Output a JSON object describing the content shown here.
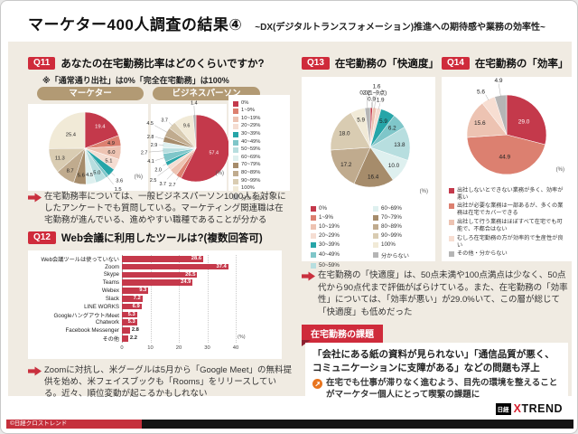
{
  "header": {
    "title": "マーケター400人調査の結果④",
    "subtitle": "~DX(デジタルトランスフォメーション)推進への期待感や業務の効率性~"
  },
  "q11": {
    "badge": "Q11",
    "question": "あなたの在宅勤務比率はどのくらいですか?",
    "note": "※「通常通り出社」は0%「完全在宅勤務」は100%",
    "comment": "在宅勤務率については、一般ビジネスパーソン1000人を対象にしたアンケートでも質問している。マーケティング関連職は在宅勤務が進んでいる、進めやすい職種であることが分かる"
  },
  "q12": {
    "badge": "Q12",
    "question": "Web会議に利用したツールは?(複数回答可)",
    "comment": "Zoomに対抗し、米グーグルは5月から「Google Meet」の無料提供を始め、米フェイスブックも「Rooms」をリリースしている。近々、順位変動が起こるかもしれない"
  },
  "q13": {
    "badge": "Q13",
    "title": "在宅勤務の「快適度」"
  },
  "q14": {
    "badge": "Q14",
    "title": "在宅勤務の「効率」"
  },
  "analysis": {
    "comment": "在宅勤務の「快適度」は、50点未満や100点満点は少なく、50点代から90点代まで評価がばらけている。また、在宅勤務の「効率性」については、「効率が悪い」が29.0%いて、この層が総じて「快適度」も低めだった"
  },
  "issues": {
    "title": "在宅勤務の課題",
    "body": "「会社にある紙の資料が見られない」「通信品質が悪く、コミュニケーションに支障がある」などの問題も浮上",
    "bullet": "在宅でも仕事が滞りなく進むよう、目先の環境を整えることがマーケター個人にとって喫緊の課題に"
  },
  "footer": {
    "logo_prefix": "日経",
    "logo_x": "X",
    "logo_trend": "TREND",
    "copyright": "©日経クロストレンド"
  },
  "chart_data": [
    {
      "id": "pie-marketer",
      "type": "pie",
      "title": "マーケター",
      "unit": "(%)",
      "categories": [
        "0%",
        "1~9%",
        "10~19%",
        "20~29%",
        "30~39%",
        "40~49%",
        "50~59%",
        "60~69%",
        "70~79%",
        "80~89%",
        "90~99%",
        "100%"
      ],
      "values": [
        19.4,
        4.9,
        6.0,
        5.1,
        3.6,
        1.5,
        5.0,
        4.5,
        5.6,
        8.7,
        11.3,
        25.4
      ],
      "display": [
        "19.4",
        "4.9",
        "6.0",
        "5.1",
        "3.6",
        "1.5",
        "5.0",
        "4.5",
        "5.6",
        "8.7",
        "11.3",
        "25.4"
      ],
      "colors": [
        "#c4394b",
        "#dc8070",
        "#edc3b2",
        "#f5ddd2",
        "#26a5a8",
        "#7fc6c9",
        "#b7dedf",
        "#def0ef",
        "#a68c6b",
        "#c0ab8e",
        "#d9ccb2",
        "#f1ead7"
      ]
    },
    {
      "id": "pie-business",
      "type": "pie",
      "title": "ビジネスパーソン",
      "unit": "(%)",
      "categories": [
        "0%",
        "1~9%",
        "10~19%",
        "20~29%",
        "30~39%",
        "40~49%",
        "50~59%",
        "60~69%",
        "70~79%",
        "80~89%",
        "90~99%",
        "100%",
        "分からない"
      ],
      "values": [
        57.4,
        2.7,
        3.7,
        2.5,
        2.0,
        4.1,
        2.7,
        2.9,
        2.8,
        4.5,
        3.7,
        9.6,
        1.4
      ],
      "display": [
        "57.4",
        "2.7",
        "3.7",
        "2.5",
        "2.0",
        "4.1",
        "2.7",
        "2.9",
        "2.8",
        "4.5",
        "3.7",
        "9.6",
        "1.4"
      ],
      "colors": [
        "#c4394b",
        "#dc8070",
        "#edc3b2",
        "#f5ddd2",
        "#26a5a8",
        "#7fc6c9",
        "#b7dedf",
        "#def0ef",
        "#a68c6b",
        "#c0ab8e",
        "#d9ccb2",
        "#f1ead7",
        "#b5b5b5"
      ]
    },
    {
      "id": "bars-tools",
      "type": "bar",
      "unit": "(%)",
      "xlim": [
        0,
        40
      ],
      "ticks": [
        0,
        10,
        20,
        30,
        40
      ],
      "categories": [
        "Web会議ツールは使っていない",
        "Zoom",
        "Skype",
        "Teams",
        "Webex",
        "Slack",
        "LINE WORKS",
        "Googleハングアウト/Meet",
        "Chatwork",
        "Facebook Messenger",
        "その他"
      ],
      "values": [
        28.6,
        37.4,
        26.5,
        24.9,
        9.3,
        7.2,
        6.9,
        5.3,
        5.3,
        2.8,
        2.2
      ],
      "bar_color": "#c5394b"
    },
    {
      "id": "pie-comfort",
      "type": "pie",
      "title": "在宅勤務の「快適度」",
      "unit": "(%)",
      "categories": [
        "0%",
        "1~9%",
        "10~19%",
        "20~29%",
        "30~39%",
        "40~49%",
        "50~59%",
        "60~69%",
        "70~79%",
        "80~89%",
        "90~99%",
        "100%",
        "分からない"
      ],
      "values": [
        0.9,
        0.0,
        1.6,
        1.9,
        5.9,
        6.2,
        13.8,
        10.0,
        16.4,
        17.2,
        18.0,
        5.9,
        2.2
      ],
      "display": [
        "0.9",
        "0.0(1~9点)",
        "1.6",
        "1.9",
        "5.9",
        "6.2",
        "13.8",
        "10.0",
        "16.4",
        "17.2",
        "18.0",
        "5.9",
        "2.2"
      ],
      "colors": [
        "#c4394b",
        "#dc8070",
        "#edc3b2",
        "#f5ddd2",
        "#26a5a8",
        "#7fc6c9",
        "#b7dedf",
        "#def0ef",
        "#a68c6b",
        "#c0ab8e",
        "#d9ccb2",
        "#f1ead7",
        "#b5b5b5"
      ]
    },
    {
      "id": "pie-efficiency",
      "type": "pie",
      "title": "在宅勤務の「効率」",
      "unit": "(%)",
      "categories": [
        "出社しないとできない業務が多く、効率が悪い",
        "出社が必要な業務は一部あるが、多くの業務は在宅でカバーできる",
        "出社して行う業務はほぼすべて在宅でも可能で、不都合はない",
        "むしろ在宅勤務の方が効率的で生産性が良い",
        "その他・分からない"
      ],
      "values": [
        29.0,
        44.9,
        15.6,
        5.6,
        4.9
      ],
      "display": [
        "29.0",
        "44.9",
        "15.6",
        "5.6",
        "4.9"
      ],
      "colors": [
        "#c4394b",
        "#dc8070",
        "#edc3b2",
        "#f7ded2",
        "#b5b5b5"
      ]
    }
  ]
}
